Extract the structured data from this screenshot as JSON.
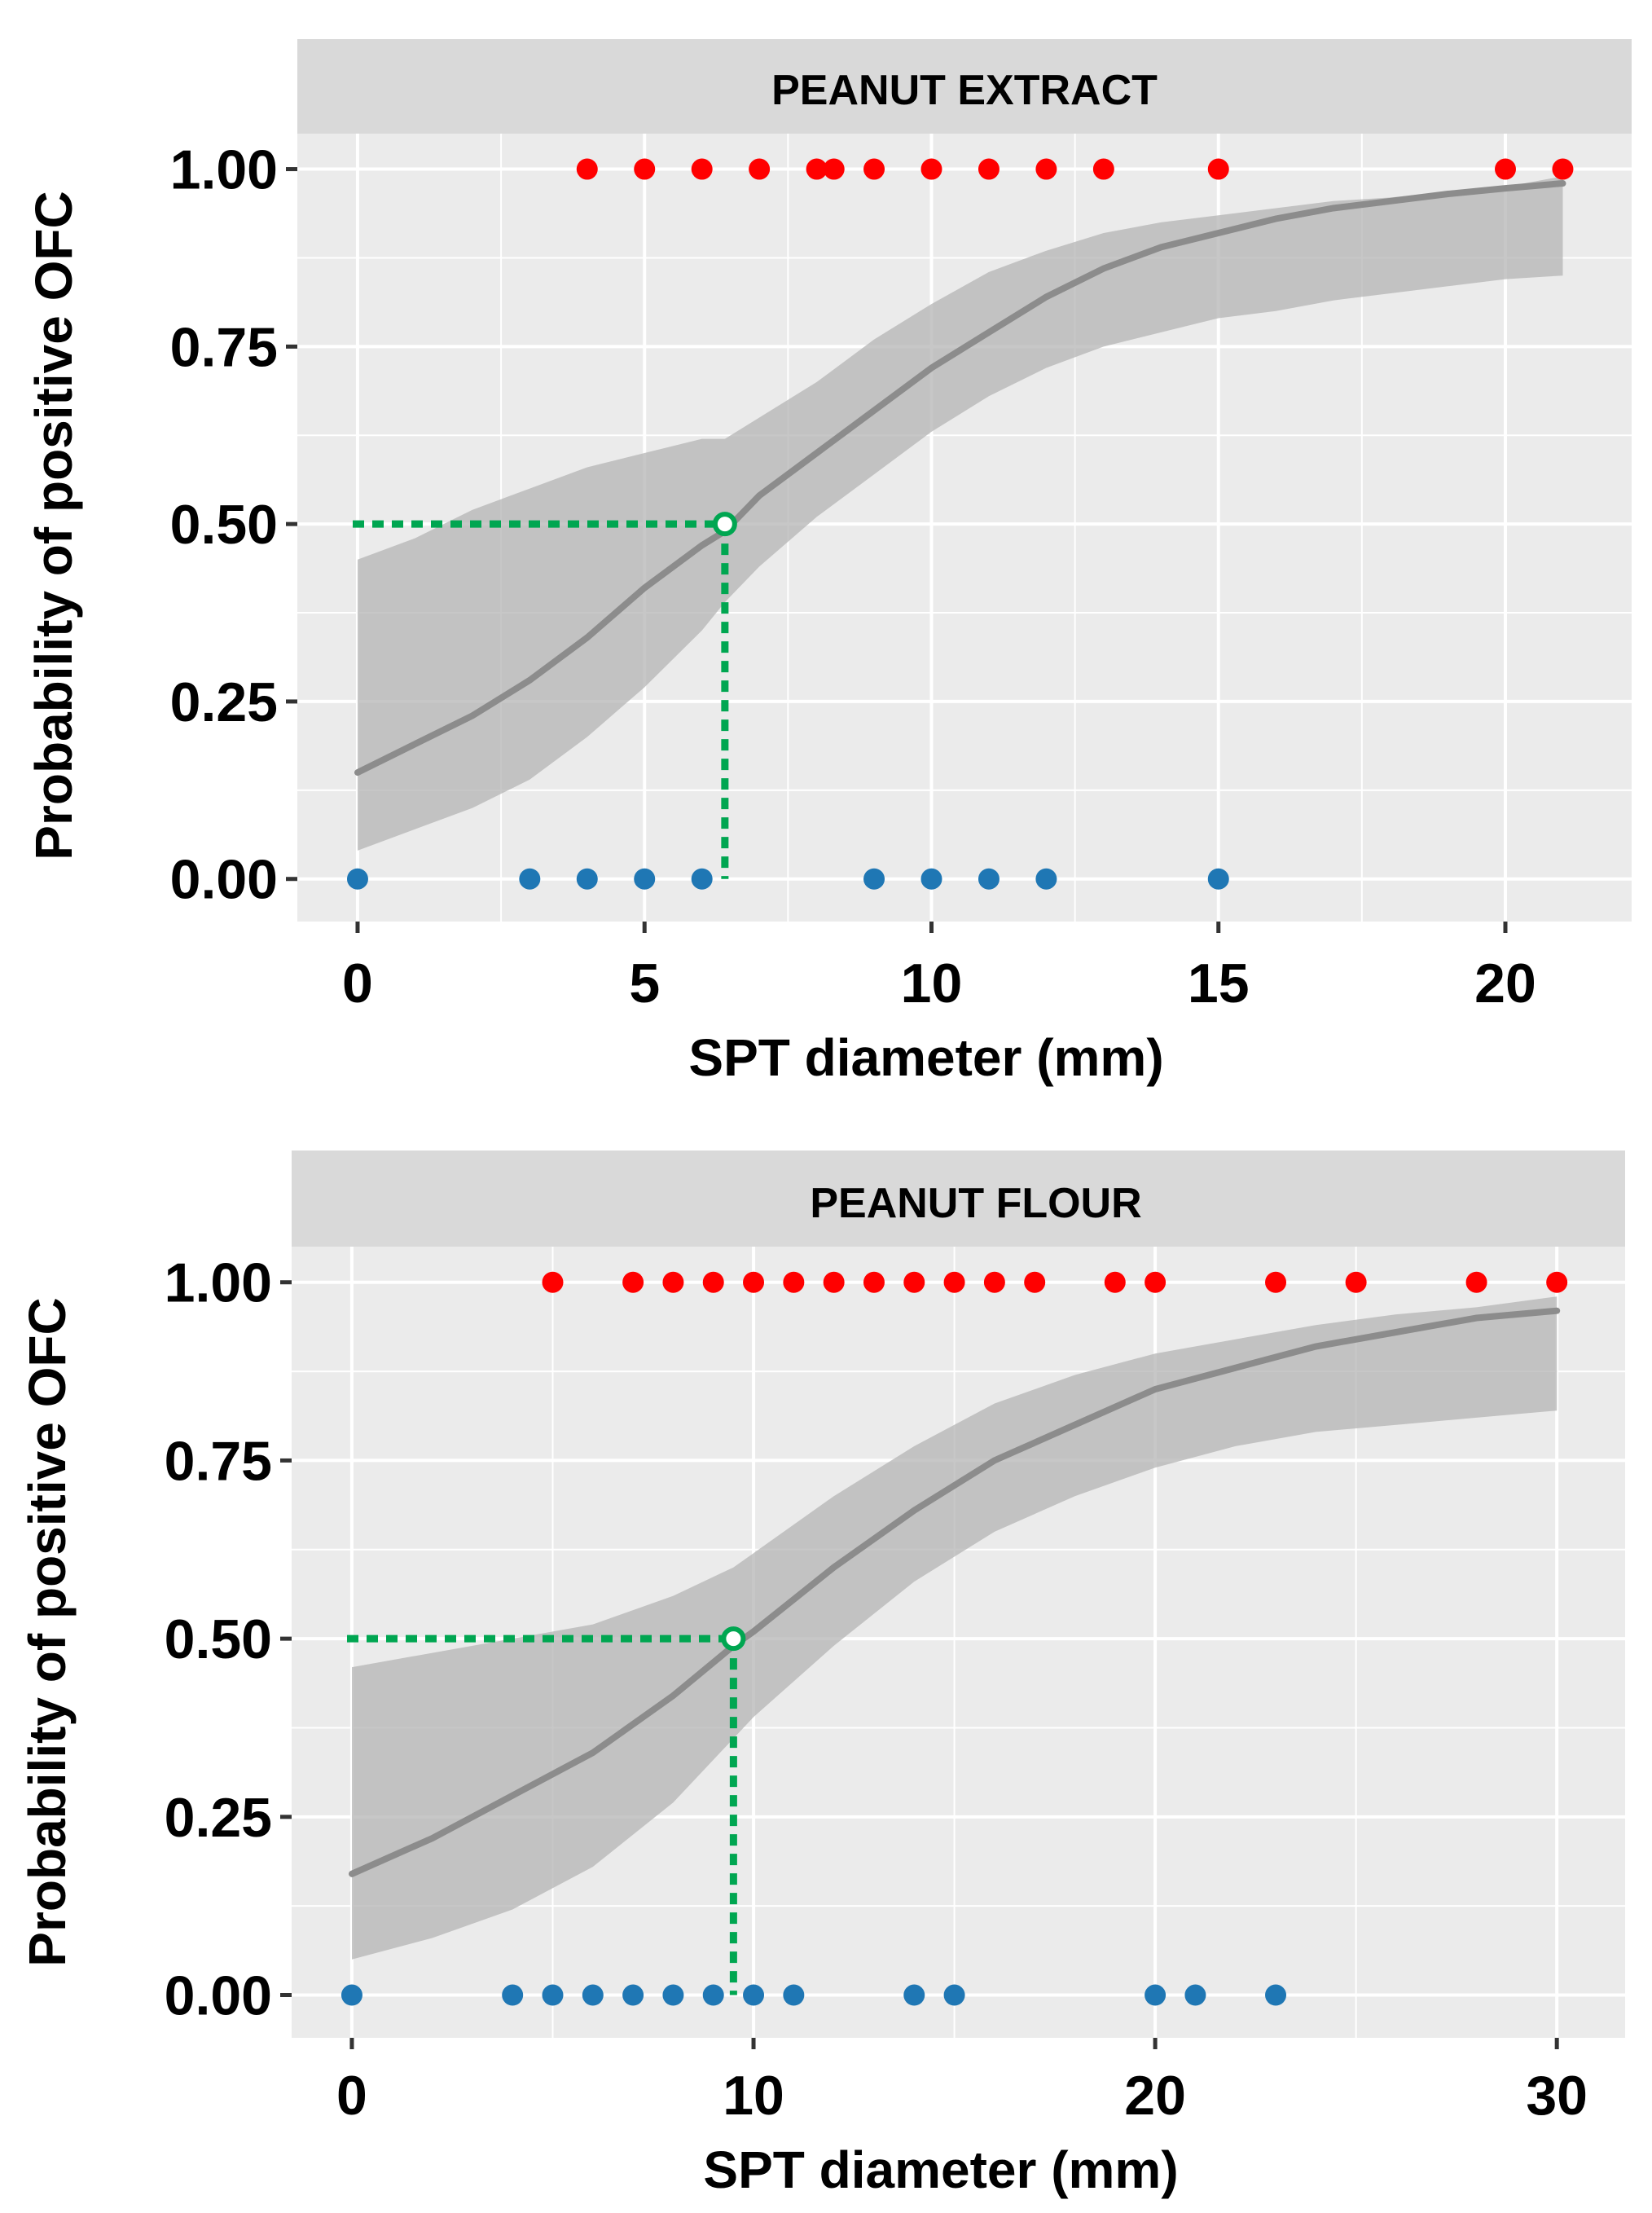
{
  "colors": {
    "panel_bg": "#ebebeb",
    "strip_bg": "#d9d9d9",
    "grid": "#ffffff",
    "positive_point": "#ff0000",
    "negative_point": "#1f77b4",
    "fit_line": "#8c8c8c",
    "ci_band": "#b4b4b4",
    "threshold": "#00a651"
  },
  "chart_data": [
    {
      "type": "scatter",
      "title": "PEANUT EXTRACT",
      "xlabel": "SPT diameter (mm)",
      "ylabel": "Probability of positive OFC",
      "xlim": [
        -1.05,
        22.2
      ],
      "ylim": [
        -0.06,
        1.05
      ],
      "x_ticks": [
        0,
        5,
        10,
        15,
        20
      ],
      "x_tick_labels": [
        "0",
        "5",
        "10",
        "15",
        "20"
      ],
      "y_ticks": [
        0,
        0.25,
        0.5,
        0.75,
        1.0
      ],
      "y_tick_labels": [
        "0.00",
        "0.25",
        "0.50",
        "0.75",
        "1.00"
      ],
      "grid": true,
      "positive_x": [
        4,
        5,
        6,
        7,
        8,
        8.3,
        9,
        10,
        11,
        12,
        13,
        15,
        20,
        21
      ],
      "negative_x": [
        0,
        3,
        4,
        5,
        6,
        9,
        10,
        11,
        12,
        15
      ],
      "fit": {
        "x": [
          0,
          1,
          2,
          3,
          4,
          5,
          6,
          6.4,
          7,
          8,
          9,
          10,
          11,
          12,
          13,
          14,
          15,
          16,
          17,
          18,
          19,
          20,
          21
        ],
        "y": [
          0.15,
          0.19,
          0.23,
          0.28,
          0.34,
          0.41,
          0.47,
          0.49,
          0.54,
          0.6,
          0.66,
          0.72,
          0.77,
          0.82,
          0.86,
          0.89,
          0.91,
          0.93,
          0.945,
          0.955,
          0.965,
          0.973,
          0.98
        ],
        "lower": [
          0.04,
          0.07,
          0.1,
          0.14,
          0.2,
          0.27,
          0.35,
          0.39,
          0.44,
          0.51,
          0.57,
          0.63,
          0.68,
          0.72,
          0.75,
          0.77,
          0.79,
          0.8,
          0.815,
          0.825,
          0.835,
          0.845,
          0.85
        ],
        "upper": [
          0.45,
          0.48,
          0.52,
          0.55,
          0.58,
          0.6,
          0.62,
          0.62,
          0.65,
          0.7,
          0.76,
          0.81,
          0.855,
          0.885,
          0.91,
          0.925,
          0.935,
          0.945,
          0.955,
          0.96,
          0.968,
          0.975,
          0.99
        ]
      },
      "threshold": {
        "x": 6.4,
        "y": 0.5
      }
    },
    {
      "type": "scatter",
      "title": "PEANUT FLOUR",
      "xlabel": "SPT diameter (mm)",
      "ylabel": "Probability of positive OFC",
      "xlim": [
        -1.5,
        31.7
      ],
      "ylim": [
        -0.06,
        1.05
      ],
      "x_ticks": [
        0,
        10,
        20,
        30
      ],
      "x_tick_labels": [
        "0",
        "10",
        "20",
        "30"
      ],
      "y_ticks": [
        0,
        0.25,
        0.5,
        0.75,
        1.0
      ],
      "y_tick_labels": [
        "0.00",
        "0.25",
        "0.50",
        "0.75",
        "1.00"
      ],
      "grid": true,
      "positive_x": [
        5,
        7,
        8,
        9,
        10,
        11,
        12,
        13,
        14,
        15,
        16,
        17,
        19,
        20,
        23,
        25,
        28,
        30
      ],
      "negative_x": [
        0,
        4,
        5,
        6,
        7,
        8,
        9,
        10,
        11,
        14,
        15,
        20,
        21,
        23
      ],
      "fit": {
        "x": [
          0,
          2,
          4,
          6,
          8,
          9.5,
          10,
          12,
          14,
          16,
          18,
          20,
          22,
          24,
          26,
          28,
          30
        ],
        "y": [
          0.17,
          0.22,
          0.28,
          0.34,
          0.42,
          0.49,
          0.51,
          0.6,
          0.68,
          0.75,
          0.8,
          0.85,
          0.88,
          0.91,
          0.93,
          0.95,
          0.96
        ],
        "lower": [
          0.05,
          0.08,
          0.12,
          0.18,
          0.27,
          0.36,
          0.39,
          0.49,
          0.58,
          0.65,
          0.7,
          0.74,
          0.77,
          0.79,
          0.8,
          0.81,
          0.82
        ],
        "upper": [
          0.46,
          0.48,
          0.5,
          0.52,
          0.56,
          0.6,
          0.62,
          0.7,
          0.77,
          0.83,
          0.87,
          0.9,
          0.92,
          0.94,
          0.955,
          0.965,
          0.98
        ]
      },
      "threshold": {
        "x": 9.5,
        "y": 0.5
      }
    }
  ]
}
